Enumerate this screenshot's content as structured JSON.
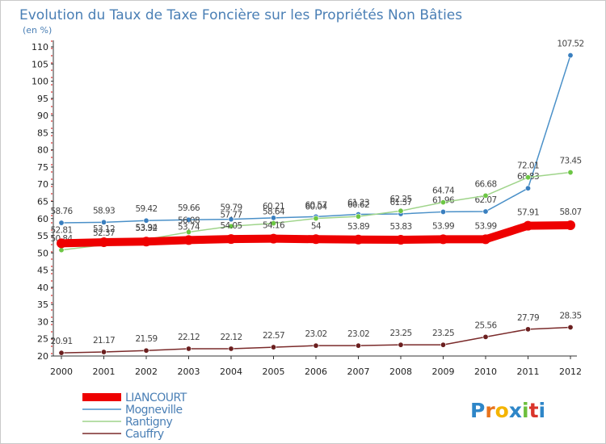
{
  "chart_data": {
    "type": "line",
    "title": "Evolution du Taux de Taxe Foncière sur les Propriétés Non Bâties",
    "ylabel": "(en %)",
    "xlabel": "",
    "categories": [
      "2000",
      "2001",
      "2002",
      "2003",
      "2004",
      "2005",
      "2006",
      "2007",
      "2008",
      "2009",
      "2010",
      "2011",
      "2012"
    ],
    "ylim": [
      20,
      110
    ],
    "yticks": [
      20,
      25,
      30,
      35,
      40,
      45,
      50,
      55,
      60,
      65,
      70,
      75,
      80,
      85,
      90,
      95,
      100,
      105,
      110
    ],
    "grid": false,
    "legend_position": "bottom-left",
    "series": [
      {
        "name": "Mogneville",
        "color": "#4a90c8",
        "marker": "#3a7fbf",
        "values": [
          58.76,
          58.93,
          59.42,
          59.66,
          59.79,
          60.21,
          60.57,
          61.23,
          61.37,
          61.96,
          62.07,
          68.83,
          107.52
        ],
        "labels": [
          "58.76",
          "58.93",
          "59.42",
          "59.66",
          "59.79",
          "60.21",
          "60.57",
          "61.23",
          "61.37",
          "61.96",
          "62.07",
          "68.83",
          "107.52"
        ]
      },
      {
        "name": "Rantigny",
        "color": "#9fd48a",
        "marker": "#6cc644",
        "values": [
          50.84,
          52.37,
          53.94,
          56.08,
          57.77,
          58.64,
          60.04,
          60.62,
          62.25,
          64.74,
          66.68,
          72.01,
          73.45
        ],
        "labels": [
          "50.84",
          "52.37",
          "53.94",
          "56.08",
          "57.77",
          "58.64",
          "60.04",
          "60.62",
          "62.25",
          "64.74",
          "66.68",
          "72.01",
          "73.45"
        ]
      },
      {
        "name": "Cauffry",
        "color": "#7a2a2a",
        "marker": "#6b1f1f",
        "values": [
          20.91,
          21.17,
          21.59,
          22.12,
          22.12,
          22.57,
          23.02,
          23.02,
          23.25,
          23.25,
          25.56,
          27.79,
          28.35
        ],
        "labels": [
          "20.91",
          "21.17",
          "21.59",
          "22.12",
          "22.12",
          "22.57",
          "23.02",
          "23.02",
          "23.25",
          "23.25",
          "25.56",
          "27.79",
          "28.35"
        ]
      },
      {
        "name": "LIANCOURT",
        "color": "#ee0000",
        "marker": "#ee0000",
        "values": [
          52.81,
          53.12,
          53.32,
          53.74,
          54.05,
          54.16,
          54,
          53.89,
          53.83,
          53.99,
          53.99,
          57.91,
          58.07
        ],
        "labels": [
          "52.81",
          "53.12",
          "53.32",
          "53.74",
          "54.05",
          "54.16",
          "54",
          "53.89",
          "53.83",
          "53.99",
          "53.99",
          "57.91",
          "58.07"
        ]
      }
    ]
  },
  "legend": {
    "entries": [
      {
        "name": "LIANCOURT",
        "color": "#ee0000"
      },
      {
        "name": "Mogneville",
        "color": "#4a90c8"
      },
      {
        "name": "Rantigny",
        "color": "#9fd48a"
      },
      {
        "name": "Cauffry",
        "color": "#7a2a2a"
      }
    ]
  },
  "logo": {
    "text": "Proxiti",
    "letters": [
      "P",
      "r",
      "o",
      "x",
      "i",
      "t",
      "i"
    ],
    "colors": [
      "#2e86c8",
      "#e8731c",
      "#f4b400",
      "#2e86c8",
      "#6cbf3c",
      "#d9342b",
      "#2e86c8"
    ]
  }
}
